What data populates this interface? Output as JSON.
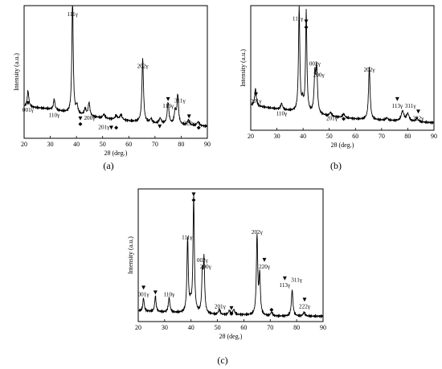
{
  "chart_data": [
    {
      "type": "line",
      "panel": "(a)",
      "xlabel": "2θ (deg.)",
      "ylabel": "Intensity (a.u.)",
      "xlim": [
        20,
        90
      ],
      "xticks": [
        20,
        30,
        40,
        50,
        60,
        70,
        80,
        90
      ],
      "ylim": [
        0,
        100
      ],
      "baseline": [
        [
          20,
          24
        ],
        [
          30,
          22
        ],
        [
          40,
          18
        ],
        [
          50,
          15
        ],
        [
          60,
          13
        ],
        [
          70,
          11
        ],
        [
          80,
          10
        ],
        [
          90,
          9
        ]
      ],
      "peaks": [
        {
          "x": 21.5,
          "h": 12,
          "w": 0.35
        },
        {
          "x": 31.5,
          "h": 8,
          "w": 0.35
        },
        {
          "x": 38.5,
          "h": 88,
          "w": 0.3
        },
        {
          "x": 40.2,
          "h": 6,
          "w": 0.4
        },
        {
          "x": 43.3,
          "h": 5,
          "w": 0.4
        },
        {
          "x": 44.8,
          "h": 10,
          "w": 0.4
        },
        {
          "x": 50.5,
          "h": 3,
          "w": 0.5
        },
        {
          "x": 55.2,
          "h": 3,
          "w": 0.5
        },
        {
          "x": 57.0,
          "h": 4,
          "w": 0.5
        },
        {
          "x": 65.3,
          "h": 48,
          "w": 0.35
        },
        {
          "x": 68.5,
          "h": 3,
          "w": 0.5
        },
        {
          "x": 72.0,
          "h": 4,
          "w": 0.5
        },
        {
          "x": 75.0,
          "h": 16,
          "w": 0.4
        },
        {
          "x": 77.7,
          "h": 10,
          "w": 0.4
        },
        {
          "x": 78.7,
          "h": 22,
          "w": 0.35
        },
        {
          "x": 82.8,
          "h": 4,
          "w": 0.45
        },
        {
          "x": 86.5,
          "h": 3,
          "w": 0.5
        }
      ],
      "annotations": [
        {
          "text": "001γ",
          "x": 21.5,
          "h": 20,
          "marks": "▼"
        },
        {
          "text": "110γ",
          "x": 31.5,
          "h": 16,
          "marks": ""
        },
        {
          "text": "111γ",
          "x": 38.5,
          "h": 92,
          "marks": ""
        },
        {
          "text": "",
          "x": 41.5,
          "h": 14,
          "marks": "▼◆"
        },
        {
          "text": "200γ",
          "x": 45.0,
          "h": 14,
          "marks": ""
        },
        {
          "text": "201γ",
          "x": 50.5,
          "h": 7,
          "marks": ""
        },
        {
          "text": "",
          "x": 53.3,
          "h": 7,
          "marks": "▼"
        },
        {
          "text": "",
          "x": 55.2,
          "h": 7,
          "marks": "◆"
        },
        {
          "text": "202γ",
          "x": 65.3,
          "h": 53,
          "marks": ""
        },
        {
          "text": "",
          "x": 71.8,
          "h": 8,
          "marks": "▼"
        },
        {
          "text": "113γ",
          "x": 75.0,
          "h": 23,
          "marks": "▼"
        },
        {
          "text": "311γ",
          "x": 79.5,
          "h": 27,
          "marks": ""
        },
        {
          "text": "222γ",
          "x": 83.0,
          "h": 10,
          "marks": "▼"
        },
        {
          "text": "",
          "x": 86.7,
          "h": 7,
          "marks": "◆"
        }
      ],
      "label": "(a)"
    },
    {
      "type": "line",
      "panel": "(b)",
      "xlabel": "2θ (deg.)",
      "ylabel": "Intensity (a.u.)",
      "xlim": [
        20,
        90
      ],
      "xticks": [
        20,
        30,
        40,
        50,
        60,
        70,
        80,
        90
      ],
      "ylim": [
        0,
        100
      ],
      "baseline": [
        [
          20,
          20
        ],
        [
          30,
          17
        ],
        [
          40,
          14
        ],
        [
          50,
          11
        ],
        [
          60,
          9
        ],
        [
          70,
          8
        ],
        [
          80,
          7
        ],
        [
          90,
          6
        ]
      ],
      "peaks": [
        {
          "x": 21.8,
          "h": 14,
          "w": 0.35
        },
        {
          "x": 31.8,
          "h": 5,
          "w": 0.4
        },
        {
          "x": 38.5,
          "h": 84,
          "w": 0.3
        },
        {
          "x": 39.8,
          "h": 8,
          "w": 0.35
        },
        {
          "x": 41.2,
          "h": 80,
          "w": 0.3
        },
        {
          "x": 44.5,
          "h": 30,
          "w": 0.35
        },
        {
          "x": 45.2,
          "h": 35,
          "w": 0.35
        },
        {
          "x": 50.5,
          "h": 3,
          "w": 0.5
        },
        {
          "x": 55.5,
          "h": 3,
          "w": 0.5
        },
        {
          "x": 65.3,
          "h": 42,
          "w": 0.35
        },
        {
          "x": 72.0,
          "h": 2,
          "w": 0.5
        },
        {
          "x": 78.0,
          "h": 8,
          "w": 0.6
        },
        {
          "x": 80.0,
          "h": 6,
          "w": 0.6
        },
        {
          "x": 83.5,
          "h": 3,
          "w": 0.5
        }
      ],
      "annotations": [
        {
          "text": "001γ",
          "x": 22.0,
          "h": 22,
          "marks": "▼"
        },
        {
          "text": "110γ",
          "x": 31.8,
          "h": 12,
          "marks": ""
        },
        {
          "text": "111γ",
          "x": 38.0,
          "h": 88,
          "marks": ""
        },
        {
          "text": "",
          "x": 41.2,
          "h": 86,
          "marks": "▼◆"
        },
        {
          "text": "002γ",
          "x": 44.5,
          "h": 52,
          "marks": ""
        },
        {
          "text": "200γ",
          "x": 46.0,
          "h": 43,
          "marks": ""
        },
        {
          "text": "201γ",
          "x": 51.0,
          "h": 8,
          "marks": ""
        },
        {
          "text": "",
          "x": 55.5,
          "h": 8,
          "marks": "◆"
        },
        {
          "text": "202γ",
          "x": 65.3,
          "h": 47,
          "marks": ""
        },
        {
          "text": "113γ",
          "x": 76.0,
          "h": 18,
          "marks": "▼"
        },
        {
          "text": "311γ",
          "x": 81.0,
          "h": 18,
          "marks": ""
        },
        {
          "text": "222γ",
          "x": 84.0,
          "h": 8,
          "marks": "▼"
        }
      ],
      "label": "(b)"
    },
    {
      "type": "line",
      "panel": "(c)",
      "xlabel": "2θ (deg.)",
      "ylabel": "Intensity (a.u.)",
      "xlim": [
        20,
        90
      ],
      "xticks": [
        20,
        30,
        40,
        50,
        60,
        70,
        80,
        90
      ],
      "ylim": [
        0,
        100
      ],
      "baseline": [
        [
          20,
          8
        ],
        [
          30,
          7
        ],
        [
          40,
          6
        ],
        [
          50,
          5
        ],
        [
          60,
          5
        ],
        [
          70,
          4
        ],
        [
          80,
          4
        ],
        [
          90,
          4
        ]
      ],
      "peaks": [
        {
          "x": 22.0,
          "h": 10,
          "w": 0.3
        },
        {
          "x": 26.5,
          "h": 12,
          "w": 0.3
        },
        {
          "x": 31.7,
          "h": 11,
          "w": 0.35
        },
        {
          "x": 38.7,
          "h": 56,
          "w": 0.3
        },
        {
          "x": 39.8,
          "h": 6,
          "w": 0.35
        },
        {
          "x": 41.0,
          "h": 88,
          "w": 0.3
        },
        {
          "x": 44.3,
          "h": 28,
          "w": 0.3
        },
        {
          "x": 44.9,
          "h": 38,
          "w": 0.3
        },
        {
          "x": 50.7,
          "h": 4,
          "w": 0.4
        },
        {
          "x": 54.5,
          "h": 3,
          "w": 0.4
        },
        {
          "x": 56.2,
          "h": 4,
          "w": 0.4
        },
        {
          "x": 65.0,
          "h": 60,
          "w": 0.3
        },
        {
          "x": 66.0,
          "h": 30,
          "w": 0.3
        },
        {
          "x": 70.5,
          "h": 3,
          "w": 0.4
        },
        {
          "x": 78.3,
          "h": 20,
          "w": 0.35
        },
        {
          "x": 82.8,
          "h": 3,
          "w": 0.4
        }
      ],
      "annotations": [
        {
          "text": "001γ",
          "x": 22.0,
          "h": 19,
          "marks": "▼"
        },
        {
          "text": "",
          "x": 26.5,
          "h": 21,
          "marks": "▼"
        },
        {
          "text": "110γ",
          "x": 31.7,
          "h": 19,
          "marks": ""
        },
        {
          "text": "111γ",
          "x": 38.5,
          "h": 62,
          "marks": ""
        },
        {
          "text": "",
          "x": 41.0,
          "h": 95,
          "marks": "▼◆"
        },
        {
          "text": "002γ",
          "x": 44.3,
          "h": 45,
          "marks": ""
        },
        {
          "text": "200γ",
          "x": 45.5,
          "h": 40,
          "marks": ""
        },
        {
          "text": "201γ",
          "x": 51.0,
          "h": 10,
          "marks": ""
        },
        {
          "text": "",
          "x": 55.3,
          "h": 9,
          "marks": "▼◆"
        },
        {
          "text": "202γ",
          "x": 65.0,
          "h": 66,
          "marks": ""
        },
        {
          "text": "220γ",
          "x": 67.8,
          "h": 40,
          "marks": "▼"
        },
        {
          "text": "",
          "x": 70.5,
          "h": 8,
          "marks": "◆"
        },
        {
          "text": "113γ",
          "x": 75.5,
          "h": 26,
          "marks": "▼"
        },
        {
          "text": "311γ",
          "x": 80.0,
          "h": 30,
          "marks": ""
        },
        {
          "text": "222γ",
          "x": 83.0,
          "h": 10,
          "marks": "▼"
        }
      ],
      "label": "(c)"
    }
  ]
}
